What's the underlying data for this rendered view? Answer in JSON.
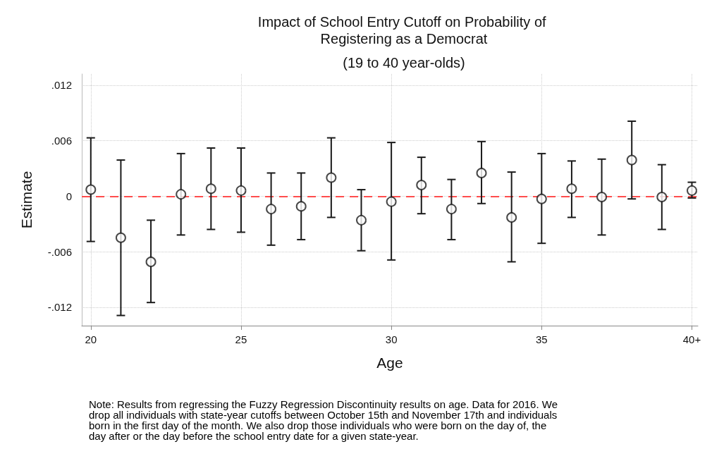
{
  "chart_data": {
    "type": "scatter",
    "title": "Impact of School Entry Cutoff on Probability of Registering as a Democrat",
    "subtitle": "(19 to 40 year-olds)",
    "xlabel": "Age",
    "ylabel": "Estimate",
    "x": [
      20,
      21,
      22,
      23,
      24,
      25,
      26,
      27,
      28,
      29,
      30,
      31,
      32,
      33,
      34,
      35,
      36,
      37,
      38,
      39,
      40
    ],
    "values": [
      0.0007,
      -0.0045,
      -0.0071,
      0.0002,
      0.0008,
      0.0006,
      -0.0014,
      -0.0011,
      0.002,
      -0.0026,
      -0.0006,
      0.0012,
      -0.0014,
      0.0025,
      -0.0023,
      -0.0003,
      0.0008,
      -0.0001,
      0.0039,
      -0.0001,
      0.0006
    ],
    "errors": [
      [
        -0.0049,
        0.0063
      ],
      [
        -0.0129,
        0.0039
      ],
      [
        -0.0115,
        -0.0026
      ],
      [
        -0.0042,
        0.0046
      ],
      [
        -0.0036,
        0.0052
      ],
      [
        -0.0039,
        0.0052
      ],
      [
        -0.0053,
        0.0025
      ],
      [
        -0.0047,
        0.0025
      ],
      [
        -0.0023,
        0.0063
      ],
      [
        -0.0059,
        0.0007
      ],
      [
        -0.0069,
        0.0058
      ],
      [
        -0.0019,
        0.0042
      ],
      [
        -0.0047,
        0.0018
      ],
      [
        -0.0008,
        0.0059
      ],
      [
        -0.0071,
        0.0026
      ],
      [
        -0.0051,
        0.0046
      ],
      [
        -0.0023,
        0.0038
      ],
      [
        -0.0042,
        0.004
      ],
      [
        -0.0003,
        0.0081
      ],
      [
        -0.0036,
        0.0034
      ],
      [
        -0.0002,
        0.0015
      ]
    ],
    "color": "#1a1a1a",
    "marker": "circle",
    "grid": true,
    "xlim": [
      19.7,
      40.2
    ],
    "xticks": [
      20,
      25,
      30,
      35,
      {
        "value": 40,
        "label": "40+"
      }
    ],
    "ylim": [
      -0.014,
      0.0132
    ],
    "yticks": [
      {
        "value": -0.012,
        "label": "-.012"
      },
      {
        "value": -0.006,
        "label": "-.006"
      },
      0,
      {
        "value": 0.006,
        "label": ".006"
      },
      {
        "value": 0.012,
        "label": ".012"
      }
    ],
    "ref_lines": [
      {
        "axis": "y",
        "value": 0,
        "color": "#ff4d4d",
        "line_style": "dashed"
      }
    ],
    "annotations": [
      "Note: Results from regressing the Fuzzy Regression Discontinuity results on age. Data for 2016. We drop all individuals with state-year cutoffs between October 15th and November 17th and individuals born in the first day of the month. We also drop those individuals who were born on the day of, the day after or the day before the school entry date for a given state-year."
    ]
  }
}
